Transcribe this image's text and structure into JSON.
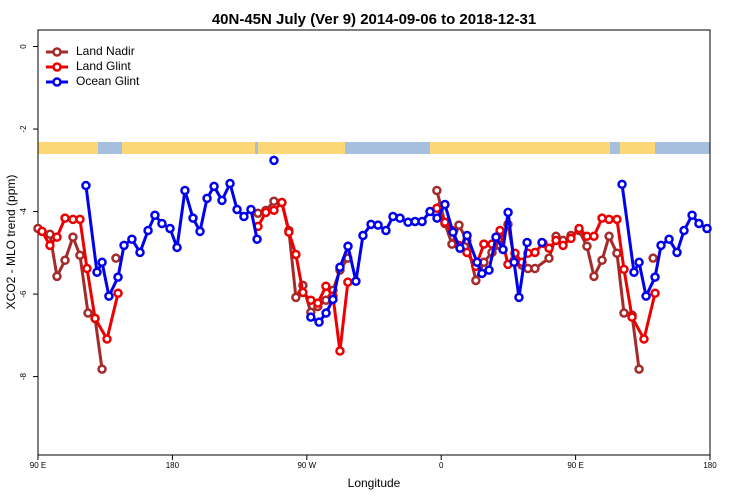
{
  "chart_data": {
    "type": "line",
    "title": "40N-45N July (Ver 9)   2014-09-06 to 2018-12-31",
    "x_label": "Longitude",
    "y_label": "XCO2 - MLO trend (ppm)",
    "xlim": [
      90,
      540
    ],
    "xticks": [
      {
        "value": 90,
        "label": "90 E"
      },
      180,
      {
        "value": 270,
        "label": "90 W"
      },
      {
        "value": 360,
        "label": "0"
      },
      {
        "value": 450,
        "label": "90 E"
      },
      {
        "value": 540,
        "label": "180"
      }
    ],
    "ylim": [
      -9.9,
      0.4
    ],
    "yticks": [
      0,
      -2,
      -4,
      -6,
      -8
    ],
    "legend": "top-left",
    "series": [
      {
        "name": "Land Nadir",
        "color": "#a52a2a",
        "x": [
          90.0,
          98.0,
          102.7,
          108.1,
          113.4,
          118.1,
          123.5,
          128.2,
          132.9,
          null,
          142.2,
          null,
          237.3,
          242.6,
          248.0,
          253.3,
          258.0,
          262.7,
          267.4,
          272.7,
          277.4,
          282.8,
          287.5,
          292.2,
          297.5,
          null,
          357.1,
          359.8,
          362.5,
          367.2,
          371.9,
          377.2,
          383.2,
          388.6,
          394.0,
          399.4,
          404.7,
          409.4,
          414.1,
          418.1,
          422.8,
          432.2,
          436.9,
          441.6,
          446.9,
          452.3,
          457.6,
          462.3,
          467.7,
          472.4,
          477.7,
          482.4,
          487.8,
          492.5,
          null,
          501.9
        ],
        "values": [
          -4.41,
          -4.55,
          -5.57,
          -5.18,
          -4.62,
          -5.06,
          -6.46,
          -6.59,
          -7.82,
          null,
          -5.13,
          null,
          -4.04,
          -3.97,
          -3.75,
          -3.78,
          -4.46,
          -6.08,
          -5.79,
          -6.44,
          -6.3,
          -6.15,
          -5.91,
          -5.42,
          -5.13,
          null,
          -3.49,
          -3.87,
          -4.29,
          -4.79,
          -4.33,
          -4.7,
          -5.67,
          -5.23,
          -4.99,
          -4.82,
          -4.31,
          -5.23,
          -5.3,
          -5.38,
          -5.38,
          -5.13,
          -4.6,
          -4.7,
          -4.58,
          -4.46,
          -4.84,
          -5.57,
          -5.18,
          -4.6,
          -5.01,
          -6.46,
          -6.51,
          -7.82,
          null,
          -5.13
        ]
      },
      {
        "name": "Land Glint",
        "color": "#ee0000",
        "x": [
          92.7,
          98.0,
          102.7,
          108.1,
          113.4,
          118.1,
          122.8,
          128.2,
          136.2,
          143.6,
          null,
          237.3,
          242.6,
          248.0,
          253.3,
          258.0,
          262.7,
          267.4,
          272.7,
          277.4,
          282.8,
          287.5,
          292.2,
          297.5,
          null,
          357.1,
          362.5,
          367.2,
          371.9,
          377.2,
          383.2,
          388.6,
          394.0,
          399.4,
          404.7,
          409.4,
          414.1,
          418.1,
          422.8,
          428.2,
          432.2,
          436.9,
          441.6,
          446.9,
          452.3,
          457.6,
          462.3,
          467.7,
          472.4,
          477.7,
          482.4,
          487.8,
          495.8,
          503.2
        ],
        "values": [
          -4.48,
          -4.82,
          -4.62,
          -4.16,
          -4.19,
          -4.19,
          -5.38,
          -6.59,
          -7.09,
          -5.98,
          null,
          -4.36,
          -4.02,
          -3.97,
          -3.78,
          -4.5,
          -5.04,
          -5.96,
          -6.15,
          -6.22,
          -5.81,
          -6.05,
          -7.38,
          -5.71,
          null,
          -3.92,
          -4.26,
          -4.46,
          -4.82,
          -4.99,
          -5.33,
          -4.79,
          -4.79,
          -4.46,
          -5.28,
          -5.01,
          -5.23,
          -5.01,
          -4.99,
          -4.77,
          -4.89,
          -4.7,
          -4.82,
          -4.65,
          -4.41,
          -4.6,
          -4.6,
          -4.16,
          -4.19,
          -4.19,
          -5.4,
          -6.56,
          -7.09,
          -5.98
        ]
      },
      {
        "name": "Ocean Glint",
        "color": "#0000ee",
        "x": [
          122.1,
          129.5,
          132.9,
          137.5,
          143.6,
          147.6,
          152.9,
          158.3,
          163.7,
          168.3,
          173.0,
          178.4,
          183.1,
          188.4,
          193.8,
          198.5,
          203.2,
          207.9,
          213.2,
          218.6,
          223.3,
          227.9,
          232.6,
          236.7,
          null,
          248.0,
          null,
          272.7,
          278.2,
          282.9,
          287.5,
          292.2,
          297.6,
          302.9,
          307.6,
          313.0,
          317.7,
          323.0,
          327.7,
          332.4,
          337.8,
          342.5,
          347.2,
          352.5,
          357.2,
          362.5,
          367.9,
          372.6,
          377.3,
          384.0,
          387.3,
          392.0,
          396.7,
          401.4,
          404.8,
          408.8,
          412.1,
          417.5,
          null,
          427.5,
          null,
          481.1,
          489.1,
          492.5,
          497.2,
          503.2,
          507.2,
          512.6,
          517.9,
          522.6,
          528.0,
          532.6,
          538.0
        ],
        "values": [
          -3.37,
          -5.47,
          -5.23,
          -6.05,
          -5.59,
          -4.82,
          -4.67,
          -4.99,
          -4.46,
          -4.09,
          -4.29,
          -4.41,
          -4.87,
          -3.49,
          -4.16,
          -4.48,
          -3.68,
          -3.39,
          -3.73,
          -3.32,
          -3.95,
          -4.12,
          -3.95,
          -4.67,
          null,
          -2.76,
          null,
          -6.56,
          -6.68,
          -6.46,
          -6.13,
          -5.35,
          -4.84,
          -5.69,
          -4.58,
          -4.31,
          -4.33,
          -4.46,
          -4.12,
          -4.16,
          -4.26,
          -4.24,
          -4.24,
          -4.0,
          -4.16,
          -3.83,
          -4.5,
          -4.89,
          -4.58,
          -5.23,
          -5.5,
          -5.42,
          -4.62,
          -4.92,
          -4.02,
          -5.23,
          -6.08,
          -4.75,
          null,
          -4.75,
          null,
          -3.34,
          -5.47,
          -5.23,
          -6.05,
          -5.59,
          -4.82,
          -4.67,
          -4.99,
          -4.46,
          -4.09,
          -4.29,
          -4.41
        ]
      }
    ]
  }
}
